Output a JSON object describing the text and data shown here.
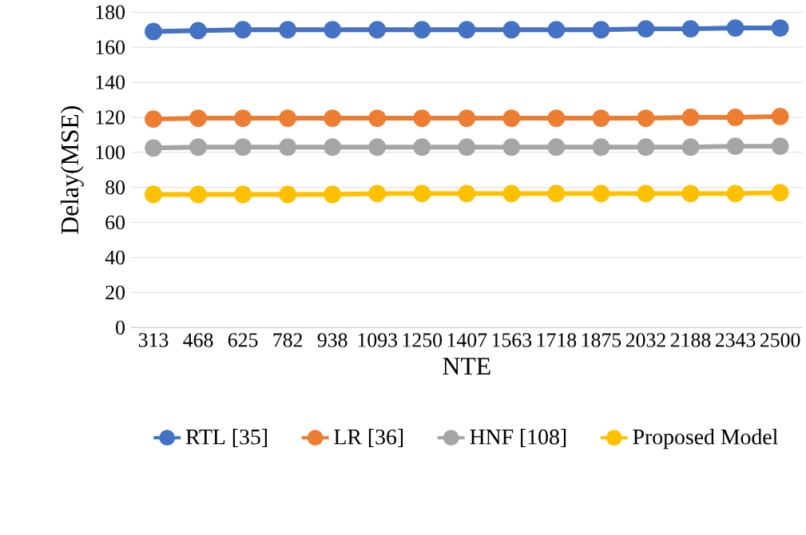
{
  "chart_data": {
    "type": "line",
    "xlabel": "NTE",
    "ylabel": "Delay(MSE)",
    "categories": [
      "313",
      "468",
      "625",
      "782",
      "938",
      "1093",
      "1250",
      "1407",
      "1563",
      "1718",
      "1875",
      "2032",
      "2188",
      "2343",
      "2500"
    ],
    "series": [
      {
        "name": "RTL [35]",
        "color": "#4472c4",
        "values": [
          169,
          169.5,
          170,
          170,
          170,
          170,
          170,
          170,
          170,
          170,
          170,
          170.5,
          170.5,
          171,
          171
        ]
      },
      {
        "name": "LR [36]",
        "color": "#ed7d31",
        "values": [
          119,
          119.5,
          119.5,
          119.5,
          119.5,
          119.5,
          119.5,
          119.5,
          119.5,
          119.5,
          119.5,
          119.5,
          120,
          120,
          120.5
        ]
      },
      {
        "name": "HNF [108]",
        "color": "#a5a5a5",
        "values": [
          102.5,
          103,
          103,
          103,
          103,
          103,
          103,
          103,
          103,
          103,
          103,
          103,
          103,
          103.5,
          103.5
        ]
      },
      {
        "name": "Proposed Model",
        "color": "#ffc000",
        "values": [
          76,
          76,
          76,
          76,
          76,
          76.5,
          76.5,
          76.5,
          76.5,
          76.5,
          76.5,
          76.5,
          76.5,
          76.5,
          77
        ]
      }
    ],
    "ylim": [
      0,
      180
    ],
    "yticks": [
      0,
      20,
      40,
      60,
      80,
      100,
      120,
      140,
      160,
      180
    ],
    "grid": "y",
    "legend": "bottom",
    "marker": "circle",
    "line_style": "solid"
  }
}
